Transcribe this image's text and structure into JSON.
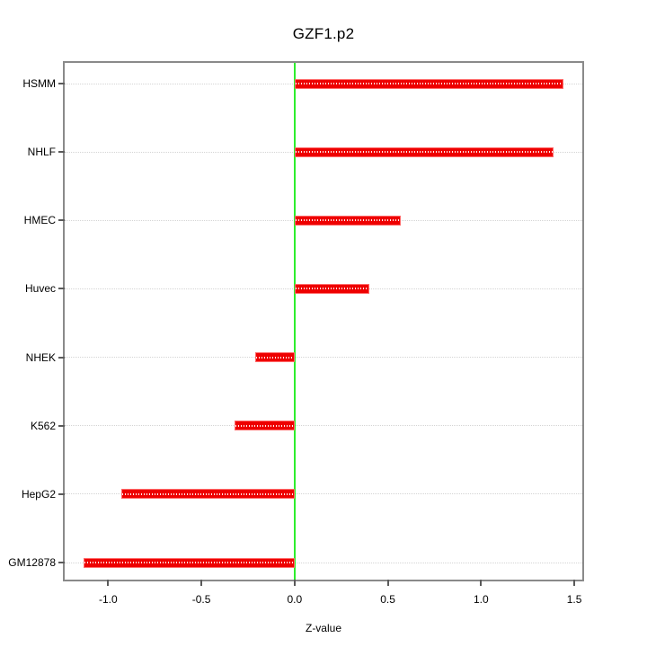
{
  "title": "GZF1.p2",
  "chart_data": {
    "type": "bar",
    "orientation": "horizontal",
    "title": "GZF1.p2",
    "xlabel": "Z-value",
    "ylabel": "",
    "categories": [
      "HSMM",
      "NHLF",
      "HMEC",
      "Huvec",
      "NHEK",
      "K562",
      "HepG2",
      "GM12878"
    ],
    "values": [
      1.44,
      1.39,
      0.57,
      0.4,
      -0.21,
      -0.32,
      -0.93,
      -1.13
    ],
    "x_ticks": [
      -1.0,
      -0.5,
      0.0,
      0.5,
      1.0,
      1.5
    ],
    "x_tick_labels": [
      "-1.0",
      "-0.5",
      "0.0",
      "0.5",
      "1.0",
      "1.5"
    ],
    "xlim": [
      -1.233,
      1.543
    ],
    "zero_line_x": 0,
    "grid": "horizontal-dotted",
    "legend": "none",
    "colors": {
      "bar": "#ee0000",
      "bar_stipple": "#ffffff",
      "zero_line": "#2dee2d",
      "box_border": "#8a8a8a",
      "gridline": "#d4d4d4",
      "text": "#000000",
      "background": "#ffffff"
    }
  }
}
